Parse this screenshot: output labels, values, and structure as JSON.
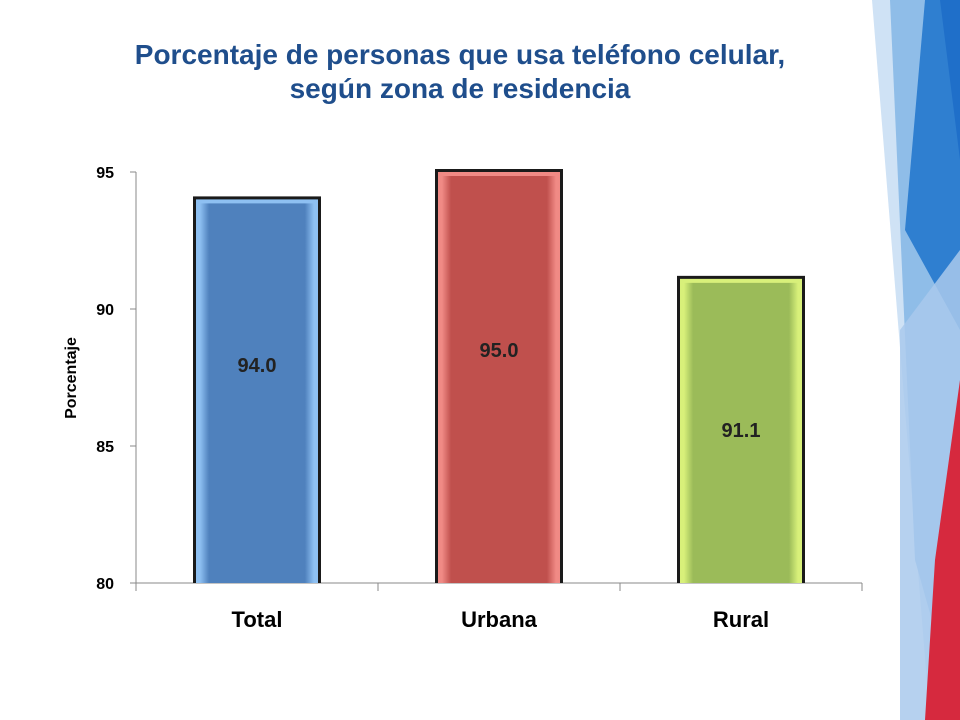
{
  "title_lines": [
    "Porcentaje de personas que usa teléfono celular,",
    "según zona de residencia"
  ],
  "chart_data": {
    "type": "bar",
    "title": "Porcentaje de personas que usa teléfono celular, según zona de residencia",
    "categories": [
      "Total",
      "Urbana",
      "Rural"
    ],
    "values": [
      94.0,
      95.0,
      91.1
    ],
    "value_labels": [
      "94.0",
      "95.0",
      "91.1"
    ],
    "xlabel": "",
    "ylabel": "Porcentaje",
    "ylim": [
      80,
      95
    ],
    "yticks": [
      80,
      85,
      90,
      95
    ],
    "grid": false,
    "legend": "none",
    "colors": [
      "#4f81bd",
      "#c0504d",
      "#9bbb59"
    ],
    "highlight_colors": [
      "#8ec0f2",
      "#f08a85",
      "#d8f07a"
    ]
  },
  "decor": {
    "accent_colors": [
      "#1f6fc9",
      "#5fa2e0",
      "#9fc6ec",
      "#d6293e"
    ]
  }
}
